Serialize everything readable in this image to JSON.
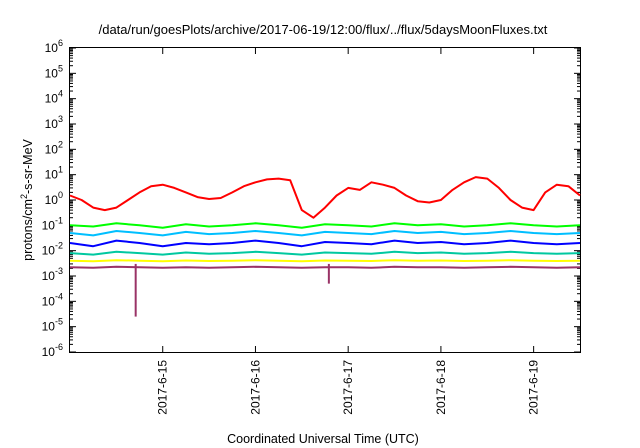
{
  "chart_data": {
    "type": "line",
    "title": "/data/run/goesPlots/archive/2017-06-19/12:00/flux/../flux/5daysMoonFluxes.txt",
    "xlabel": "Coordinated Universal Time (UTC)",
    "ylabel": {
      "prefix": "protons/cm",
      "sup": "2",
      "suffix": "-s-sr-MeV"
    },
    "yscale": "log",
    "ylim": [
      1e-06,
      1000000
    ],
    "yticks": [
      {
        "base": "10",
        "exp": "-6",
        "value": 1e-06
      },
      {
        "base": "10",
        "exp": "-5",
        "value": 1e-05
      },
      {
        "base": "10",
        "exp": "-4",
        "value": 0.0001
      },
      {
        "base": "10",
        "exp": "-3",
        "value": 0.001
      },
      {
        "base": "10",
        "exp": "-2",
        "value": 0.01
      },
      {
        "base": "10",
        "exp": "-1",
        "value": 0.1
      },
      {
        "base": "10",
        "exp": "0",
        "value": 1
      },
      {
        "base": "10",
        "exp": "1",
        "value": 10
      },
      {
        "base": "10",
        "exp": "2",
        "value": 100
      },
      {
        "base": "10",
        "exp": "3",
        "value": 1000
      },
      {
        "base": "10",
        "exp": "4",
        "value": 10000
      },
      {
        "base": "10",
        "exp": "5",
        "value": 100000
      },
      {
        "base": "10",
        "exp": "6",
        "value": 1000000
      }
    ],
    "xlim": [
      "2017-06-14 00:00",
      "2017-06-19 12:00"
    ],
    "xticks": [
      {
        "label": "2017-6-15",
        "value": "2017-06-15"
      },
      {
        "label": "2017-6-16",
        "value": "2017-06-16"
      },
      {
        "label": "2017-6-17",
        "value": "2017-06-17"
      },
      {
        "label": "2017-6-18",
        "value": "2017-06-18"
      },
      {
        "label": "2017-6-19",
        "value": "2017-06-19"
      }
    ],
    "grid": false,
    "legend": "none",
    "series": [
      {
        "color": "#ff0000",
        "x": [
          "2017-06-14 00:00",
          "2017-06-14 03:00",
          "2017-06-14 06:00",
          "2017-06-14 09:00",
          "2017-06-14 12:00",
          "2017-06-14 15:00",
          "2017-06-14 18:00",
          "2017-06-14 21:00",
          "2017-06-15 00:00",
          "2017-06-15 03:00",
          "2017-06-15 06:00",
          "2017-06-15 09:00",
          "2017-06-15 12:00",
          "2017-06-15 15:00",
          "2017-06-15 18:00",
          "2017-06-15 21:00",
          "2017-06-16 00:00",
          "2017-06-16 03:00",
          "2017-06-16 06:00",
          "2017-06-16 09:00",
          "2017-06-16 12:00",
          "2017-06-16 15:00",
          "2017-06-16 18:00",
          "2017-06-16 21:00",
          "2017-06-17 00:00",
          "2017-06-17 03:00",
          "2017-06-17 06:00",
          "2017-06-17 09:00",
          "2017-06-17 12:00",
          "2017-06-17 15:00",
          "2017-06-17 18:00",
          "2017-06-17 21:00",
          "2017-06-18 00:00",
          "2017-06-18 03:00",
          "2017-06-18 06:00",
          "2017-06-18 09:00",
          "2017-06-18 12:00",
          "2017-06-18 15:00",
          "2017-06-18 18:00",
          "2017-06-18 21:00",
          "2017-06-19 00:00",
          "2017-06-19 03:00",
          "2017-06-19 06:00",
          "2017-06-19 09:00",
          "2017-06-19 12:00"
        ],
        "values": [
          1.5,
          1.0,
          0.5,
          0.4,
          0.5,
          1.0,
          2.0,
          3.5,
          4.0,
          3.0,
          2.0,
          1.3,
          1.1,
          1.2,
          2.0,
          3.5,
          5.0,
          6.5,
          7.0,
          6.0,
          0.4,
          0.2,
          0.5,
          1.5,
          3.0,
          2.5,
          5.0,
          4.0,
          3.0,
          1.5,
          0.9,
          0.8,
          1.0,
          2.5,
          5.0,
          8.0,
          7.0,
          3.0,
          1.0,
          0.5,
          0.4,
          2.0,
          4.0,
          3.5,
          1.5
        ]
      },
      {
        "color": "#00ff00",
        "x": [
          "2017-06-14 00:00",
          "2017-06-14 06:00",
          "2017-06-14 12:00",
          "2017-06-14 18:00",
          "2017-06-15 00:00",
          "2017-06-15 06:00",
          "2017-06-15 12:00",
          "2017-06-15 18:00",
          "2017-06-16 00:00",
          "2017-06-16 06:00",
          "2017-06-16 12:00",
          "2017-06-16 18:00",
          "2017-06-17 00:00",
          "2017-06-17 06:00",
          "2017-06-17 12:00",
          "2017-06-17 18:00",
          "2017-06-18 00:00",
          "2017-06-18 06:00",
          "2017-06-18 12:00",
          "2017-06-18 18:00",
          "2017-06-19 00:00",
          "2017-06-19 06:00",
          "2017-06-19 12:00"
        ],
        "values": [
          0.1,
          0.09,
          0.12,
          0.1,
          0.08,
          0.11,
          0.09,
          0.1,
          0.12,
          0.1,
          0.08,
          0.11,
          0.1,
          0.09,
          0.12,
          0.1,
          0.11,
          0.09,
          0.1,
          0.12,
          0.1,
          0.09,
          0.1
        ]
      },
      {
        "color": "#00bfff",
        "x": [
          "2017-06-14 00:00",
          "2017-06-14 06:00",
          "2017-06-14 12:00",
          "2017-06-14 18:00",
          "2017-06-15 00:00",
          "2017-06-15 06:00",
          "2017-06-15 12:00",
          "2017-06-15 18:00",
          "2017-06-16 00:00",
          "2017-06-16 06:00",
          "2017-06-16 12:00",
          "2017-06-16 18:00",
          "2017-06-17 00:00",
          "2017-06-17 06:00",
          "2017-06-17 12:00",
          "2017-06-17 18:00",
          "2017-06-18 00:00",
          "2017-06-18 06:00",
          "2017-06-18 12:00",
          "2017-06-18 18:00",
          "2017-06-19 00:00",
          "2017-06-19 06:00",
          "2017-06-19 12:00"
        ],
        "values": [
          0.05,
          0.04,
          0.06,
          0.05,
          0.04,
          0.055,
          0.045,
          0.05,
          0.06,
          0.05,
          0.04,
          0.055,
          0.05,
          0.045,
          0.06,
          0.05,
          0.055,
          0.045,
          0.05,
          0.06,
          0.05,
          0.045,
          0.05
        ]
      },
      {
        "color": "#0000ff",
        "x": [
          "2017-06-14 00:00",
          "2017-06-14 06:00",
          "2017-06-14 12:00",
          "2017-06-14 18:00",
          "2017-06-15 00:00",
          "2017-06-15 06:00",
          "2017-06-15 12:00",
          "2017-06-15 18:00",
          "2017-06-16 00:00",
          "2017-06-16 06:00",
          "2017-06-16 12:00",
          "2017-06-16 18:00",
          "2017-06-17 00:00",
          "2017-06-17 06:00",
          "2017-06-17 12:00",
          "2017-06-17 18:00",
          "2017-06-18 00:00",
          "2017-06-18 06:00",
          "2017-06-18 12:00",
          "2017-06-18 18:00",
          "2017-06-19 00:00",
          "2017-06-19 06:00",
          "2017-06-19 12:00"
        ],
        "values": [
          0.02,
          0.015,
          0.025,
          0.02,
          0.015,
          0.02,
          0.018,
          0.02,
          0.025,
          0.02,
          0.015,
          0.022,
          0.02,
          0.018,
          0.025,
          0.02,
          0.022,
          0.018,
          0.02,
          0.025,
          0.02,
          0.018,
          0.02
        ]
      },
      {
        "color": "#00c8a0",
        "x": [
          "2017-06-14 00:00",
          "2017-06-14 06:00",
          "2017-06-14 12:00",
          "2017-06-14 18:00",
          "2017-06-15 00:00",
          "2017-06-15 06:00",
          "2017-06-15 12:00",
          "2017-06-15 18:00",
          "2017-06-16 00:00",
          "2017-06-16 06:00",
          "2017-06-16 12:00",
          "2017-06-16 18:00",
          "2017-06-17 00:00",
          "2017-06-17 06:00",
          "2017-06-17 12:00",
          "2017-06-17 18:00",
          "2017-06-18 00:00",
          "2017-06-18 06:00",
          "2017-06-18 12:00",
          "2017-06-18 18:00",
          "2017-06-19 00:00",
          "2017-06-19 06:00",
          "2017-06-19 12:00"
        ],
        "values": [
          0.008,
          0.007,
          0.009,
          0.008,
          0.007,
          0.0085,
          0.0075,
          0.008,
          0.009,
          0.008,
          0.007,
          0.0085,
          0.008,
          0.0075,
          0.009,
          0.008,
          0.0085,
          0.0075,
          0.008,
          0.009,
          0.008,
          0.0075,
          0.008
        ]
      },
      {
        "color": "#ffff00",
        "x": [
          "2017-06-14 00:00",
          "2017-06-14 06:00",
          "2017-06-14 12:00",
          "2017-06-14 18:00",
          "2017-06-15 00:00",
          "2017-06-15 06:00",
          "2017-06-15 12:00",
          "2017-06-15 18:00",
          "2017-06-16 00:00",
          "2017-06-16 06:00",
          "2017-06-16 12:00",
          "2017-06-16 18:00",
          "2017-06-17 00:00",
          "2017-06-17 06:00",
          "2017-06-17 12:00",
          "2017-06-17 18:00",
          "2017-06-18 00:00",
          "2017-06-18 06:00",
          "2017-06-18 12:00",
          "2017-06-18 18:00",
          "2017-06-19 00:00",
          "2017-06-19 06:00",
          "2017-06-19 12:00"
        ],
        "values": [
          0.004,
          0.0038,
          0.0042,
          0.004,
          0.0038,
          0.0041,
          0.0039,
          0.004,
          0.0042,
          0.004,
          0.0038,
          0.0041,
          0.004,
          0.0039,
          0.0042,
          0.004,
          0.0041,
          0.0039,
          0.004,
          0.0042,
          0.004,
          0.0039,
          0.004
        ]
      },
      {
        "color": "#993366",
        "x": [
          "2017-06-14 00:00",
          "2017-06-14 06:00",
          "2017-06-14 12:00",
          "2017-06-14 18:00",
          "2017-06-15 00:00",
          "2017-06-15 06:00",
          "2017-06-15 12:00",
          "2017-06-15 18:00",
          "2017-06-16 00:00",
          "2017-06-16 06:00",
          "2017-06-16 12:00",
          "2017-06-16 18:00",
          "2017-06-17 00:00",
          "2017-06-17 06:00",
          "2017-06-17 12:00",
          "2017-06-17 18:00",
          "2017-06-18 00:00",
          "2017-06-18 06:00",
          "2017-06-18 12:00",
          "2017-06-18 18:00",
          "2017-06-19 00:00",
          "2017-06-19 06:00",
          "2017-06-19 12:00"
        ],
        "values": [
          0.0022,
          0.0021,
          0.0023,
          0.0022,
          0.0021,
          0.0022,
          0.0021,
          0.0022,
          0.0023,
          0.0022,
          0.0021,
          0.0022,
          0.0022,
          0.0021,
          0.0023,
          0.0022,
          0.0022,
          0.0021,
          0.0022,
          0.0023,
          0.0022,
          0.0021,
          0.0022
        ]
      }
    ],
    "annotations": [
      {
        "x": "2017-06-14 17:00",
        "min_value": 2.5e-05,
        "note": "deep dip in lower series"
      },
      {
        "x": "2017-06-16 19:00",
        "min_value": 0.0005,
        "note": "dip in lower series"
      }
    ]
  }
}
